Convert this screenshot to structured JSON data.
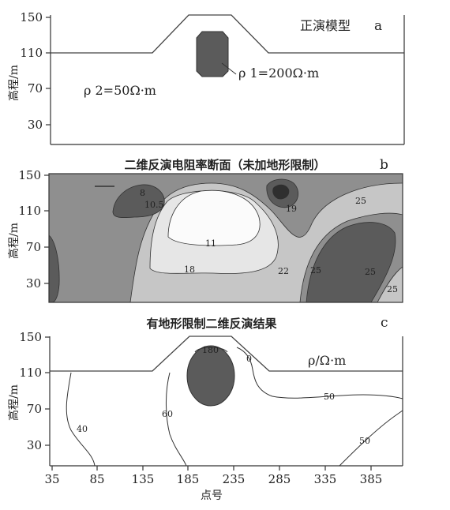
{
  "panels": [
    {
      "id": "a",
      "letter": "a",
      "title": "正演模型",
      "ylabel": "高程/m",
      "yticks": [
        "150",
        "110",
        "70",
        "30"
      ],
      "annotations": {
        "rho1": "ρ 1=200Ω·m",
        "rho2": "ρ 2=50Ω·m"
      }
    },
    {
      "id": "b",
      "letter": "b",
      "title": "二维反演电阻率断面（未加地形限制）",
      "ylabel": "高程/m",
      "yticks": [
        "150",
        "110",
        "70",
        "30"
      ],
      "contour_labels": [
        "8",
        "10.5",
        "11",
        "18",
        "19",
        "22",
        "25",
        "25",
        "25",
        "25"
      ]
    },
    {
      "id": "c",
      "letter": "c",
      "title": "有地形限制二维反演结果",
      "ylabel": "高程/m",
      "yticks": [
        "150",
        "110",
        "70",
        "30"
      ],
      "xticks": [
        "35",
        "85",
        "135",
        "185",
        "235",
        "285",
        "335",
        "385"
      ],
      "xlabel": "点号",
      "unit_label": "ρ/Ω·m",
      "contour_labels": [
        "180",
        "0",
        "50",
        "40",
        "60",
        "50"
      ]
    }
  ],
  "colors": {
    "dark": "#5b5b5b",
    "mid": "#8f8f8f",
    "light": "#c6c6c6",
    "pale": "#e6e6e6",
    "white": "#fbfbfb"
  }
}
